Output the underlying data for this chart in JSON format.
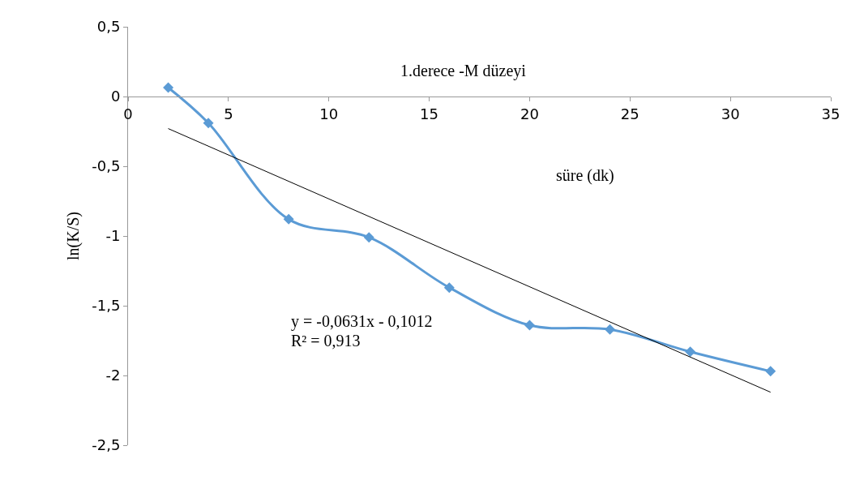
{
  "chart_data": {
    "type": "line",
    "title": "1.derece -M düzeyi",
    "xlabel": "süre (dk)",
    "ylabel": "ln(K/S)",
    "x": [
      2,
      4,
      8,
      12,
      16,
      20,
      24,
      28,
      32
    ],
    "series": [
      {
        "color": "#5b9bd5",
        "marker": "diamond",
        "values": [
          0.064,
          -0.19,
          -0.88,
          -1.01,
          -1.37,
          -1.64,
          -1.67,
          -1.83,
          -1.97
        ]
      },
      {
        "type": "line",
        "color": "#000000",
        "marker": "none",
        "x": [
          2,
          32
        ],
        "values": [
          -0.23,
          -2.12
        ]
      }
    ],
    "annotations": [
      "y = -0,0631x - 0,1012",
      "R² = 0,913"
    ],
    "xlim": [
      0,
      35
    ],
    "xticks": [
      0,
      5,
      10,
      15,
      20,
      25,
      30,
      35
    ],
    "ylim": [
      -2.5,
      0.5
    ],
    "yticks": [
      {
        "value": 0.5,
        "label": "0,5"
      },
      0,
      {
        "value": -0.5,
        "label": "-0,5"
      },
      -1,
      {
        "value": -1.5,
        "label": "-1,5"
      },
      -2,
      {
        "value": -2.5,
        "label": "-2,5"
      }
    ],
    "grid": false,
    "legend": false
  }
}
